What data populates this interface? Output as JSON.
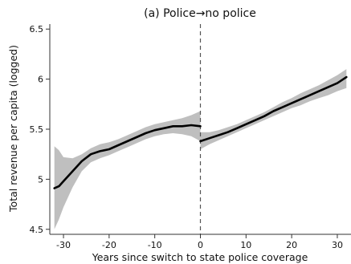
{
  "chart_data": {
    "type": "line",
    "title": "(a) Police→no police",
    "xlabel": "Years since switch to state police coverage",
    "ylabel": "Total revenue per capita (logged)",
    "xlim": [
      -33,
      33
    ],
    "ylim": [
      4.45,
      6.55
    ],
    "xticks": [
      -30,
      -20,
      -10,
      0,
      10,
      20,
      30
    ],
    "xtick_labels": [
      "-30",
      "-20",
      "-10",
      "0",
      "10",
      "20",
      "30"
    ],
    "yticks": [
      4.5,
      5,
      5.5,
      6,
      6.5
    ],
    "ytick_labels": [
      "4.5",
      "5",
      "5.5",
      "6",
      "6.5"
    ],
    "vline_x": 0,
    "grid": false,
    "legend": "none",
    "colors": {
      "line": "#000000",
      "band": "#bfbfbf",
      "vline": "#555555",
      "axis": "#333333"
    },
    "series": [
      {
        "segment": "pre",
        "x": [
          -32,
          -31,
          -30,
          -28,
          -26,
          -24,
          -22,
          -20,
          -18,
          -16,
          -14,
          -12,
          -10,
          -8,
          -6,
          -4,
          -2,
          0
        ],
        "y": [
          4.91,
          4.93,
          4.98,
          5.08,
          5.18,
          5.25,
          5.28,
          5.3,
          5.34,
          5.38,
          5.42,
          5.46,
          5.49,
          5.51,
          5.53,
          5.53,
          5.54,
          5.53
        ],
        "lower": [
          4.5,
          4.6,
          4.72,
          4.92,
          5.08,
          5.17,
          5.21,
          5.24,
          5.28,
          5.32,
          5.36,
          5.4,
          5.43,
          5.45,
          5.46,
          5.45,
          5.43,
          5.38
        ],
        "upper": [
          5.33,
          5.29,
          5.22,
          5.21,
          5.25,
          5.31,
          5.35,
          5.37,
          5.4,
          5.44,
          5.48,
          5.52,
          5.55,
          5.57,
          5.59,
          5.61,
          5.64,
          5.68
        ]
      },
      {
        "segment": "post",
        "x": [
          0,
          2,
          4,
          6,
          8,
          10,
          12,
          14,
          16,
          18,
          20,
          22,
          24,
          26,
          28,
          30,
          32
        ],
        "y": [
          5.38,
          5.41,
          5.44,
          5.47,
          5.51,
          5.55,
          5.59,
          5.63,
          5.68,
          5.72,
          5.76,
          5.8,
          5.84,
          5.88,
          5.92,
          5.96,
          6.02
        ],
        "lower": [
          5.3,
          5.35,
          5.39,
          5.43,
          5.47,
          5.51,
          5.55,
          5.59,
          5.63,
          5.67,
          5.71,
          5.74,
          5.78,
          5.81,
          5.84,
          5.88,
          5.91
        ],
        "upper": [
          5.47,
          5.47,
          5.49,
          5.52,
          5.55,
          5.59,
          5.63,
          5.67,
          5.72,
          5.77,
          5.81,
          5.86,
          5.9,
          5.94,
          5.99,
          6.04,
          6.1
        ]
      }
    ]
  }
}
